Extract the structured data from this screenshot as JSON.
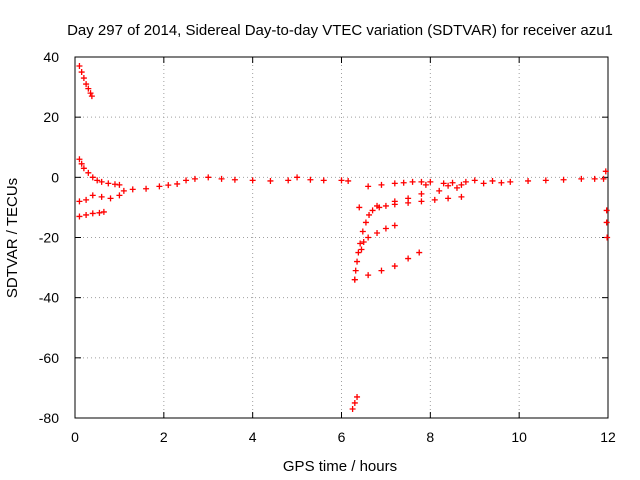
{
  "chart_data": {
    "type": "scatter",
    "title": "Day 297 of 2014, Sidereal Day-to-day VTEC variation (SDTVAR) for receiver azu1",
    "xlabel": "GPS time / hours",
    "ylabel": "SDTVAR / TECUs",
    "xlim": [
      0,
      12
    ],
    "ylim": [
      -80,
      40
    ],
    "xticks": [
      0,
      2,
      4,
      6,
      8,
      10,
      12
    ],
    "yticks": [
      -80,
      -60,
      -40,
      -20,
      0,
      20,
      40
    ],
    "grid": true,
    "legend": "none",
    "marker": "plus",
    "color": "#ff0000",
    "series": [
      {
        "points": [
          [
            0.1,
            37
          ],
          [
            0.15,
            35
          ],
          [
            0.2,
            33
          ],
          [
            0.25,
            31
          ],
          [
            0.3,
            29.5
          ],
          [
            0.35,
            28
          ],
          [
            0.38,
            27
          ]
        ]
      },
      {
        "points": [
          [
            0.1,
            6
          ],
          [
            0.15,
            4.5
          ],
          [
            0.2,
            3
          ],
          [
            0.3,
            1.5
          ],
          [
            0.4,
            0
          ],
          [
            0.5,
            -1
          ],
          [
            0.6,
            -1.5
          ],
          [
            0.75,
            -2
          ],
          [
            0.9,
            -2.3
          ],
          [
            1.0,
            -2.5
          ]
        ]
      },
      {
        "points": [
          [
            0.1,
            -8
          ],
          [
            0.25,
            -7.5
          ],
          [
            0.4,
            -6
          ],
          [
            0.6,
            -6.5
          ],
          [
            0.8,
            -7
          ],
          [
            1.0,
            -6
          ],
          [
            1.1,
            -4.5
          ],
          [
            1.3,
            -4
          ],
          [
            1.6,
            -3.8
          ],
          [
            1.9,
            -3
          ],
          [
            2.1,
            -2.6
          ],
          [
            2.3,
            -2.2
          ],
          [
            2.5,
            -1
          ],
          [
            2.7,
            -0.5
          ],
          [
            3.0,
            0
          ],
          [
            3.3,
            -0.5
          ],
          [
            3.6,
            -0.8
          ],
          [
            4.0,
            -1
          ],
          [
            4.4,
            -1.2
          ],
          [
            4.8,
            -1
          ],
          [
            5.0,
            0
          ],
          [
            5.3,
            -0.8
          ],
          [
            5.6,
            -1
          ],
          [
            6.0,
            -1
          ],
          [
            6.15,
            -1.2
          ]
        ]
      },
      {
        "points": [
          [
            0.1,
            -13
          ],
          [
            0.25,
            -12.5
          ],
          [
            0.4,
            -12
          ],
          [
            0.55,
            -11.8
          ],
          [
            0.65,
            -11.5
          ]
        ]
      },
      {
        "points": [
          [
            6.25,
            -77
          ],
          [
            6.3,
            -75
          ],
          [
            6.35,
            -73
          ]
        ]
      },
      {
        "points": [
          [
            6.3,
            -34
          ],
          [
            6.32,
            -31
          ],
          [
            6.35,
            -28
          ],
          [
            6.38,
            -25
          ],
          [
            6.42,
            -22
          ],
          [
            6.48,
            -18
          ],
          [
            6.55,
            -15
          ],
          [
            6.62,
            -12.5
          ],
          [
            6.7,
            -11
          ],
          [
            6.85,
            -10
          ],
          [
            7.0,
            -9.5
          ],
          [
            7.2,
            -9
          ],
          [
            7.5,
            -8.5
          ],
          [
            7.8,
            -8
          ],
          [
            8.1,
            -7.5
          ],
          [
            8.4,
            -7
          ],
          [
            8.7,
            -6.5
          ]
        ]
      },
      {
        "points": [
          [
            6.3,
            -34
          ],
          [
            6.6,
            -32.5
          ],
          [
            6.9,
            -31
          ],
          [
            7.2,
            -29.5
          ],
          [
            7.5,
            -27
          ],
          [
            7.75,
            -25
          ]
        ]
      },
      {
        "points": [
          [
            6.45,
            -24
          ],
          [
            6.5,
            -21.5
          ],
          [
            6.6,
            -20
          ],
          [
            6.8,
            -18.5
          ],
          [
            7.0,
            -17
          ],
          [
            7.2,
            -16
          ]
        ]
      },
      {
        "points": [
          [
            6.4,
            -10
          ],
          [
            6.8,
            -9.5
          ],
          [
            7.2,
            -8
          ],
          [
            7.5,
            -7
          ],
          [
            7.8,
            -5.5
          ],
          [
            8.2,
            -4.5
          ],
          [
            8.6,
            -3.5
          ]
        ]
      },
      {
        "points": [
          [
            6.6,
            -3
          ],
          [
            6.9,
            -2.5
          ],
          [
            7.2,
            -2
          ],
          [
            7.4,
            -1.8
          ],
          [
            7.6,
            -1.5
          ]
        ]
      },
      {
        "points": [
          [
            7.8,
            -1.5
          ],
          [
            8.0,
            -1.5
          ],
          [
            8.3,
            -2
          ],
          [
            8.5,
            -1.8
          ],
          [
            8.8,
            -1.5
          ],
          [
            9.0,
            -1
          ],
          [
            9.4,
            -1.2
          ],
          [
            9.8,
            -1.5
          ],
          [
            10.2,
            -1.2
          ],
          [
            10.6,
            -1
          ],
          [
            11.0,
            -0.8
          ],
          [
            11.4,
            -0.5
          ],
          [
            11.7,
            -0.5
          ],
          [
            11.9,
            -0.5
          ]
        ]
      },
      {
        "points": [
          [
            7.9,
            -2.5
          ],
          [
            8.4,
            -2.8
          ],
          [
            8.7,
            -2.5
          ],
          [
            9.2,
            -2
          ],
          [
            9.6,
            -1.8
          ]
        ]
      },
      {
        "points": [
          [
            11.95,
            2
          ],
          [
            11.97,
            -11
          ],
          [
            11.97,
            -15
          ],
          [
            11.98,
            -20
          ]
        ]
      }
    ]
  }
}
